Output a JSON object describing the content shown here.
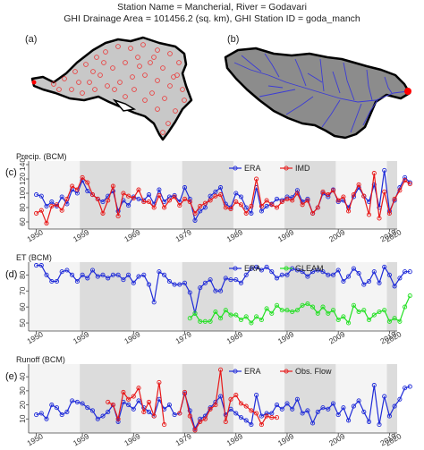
{
  "header": {
    "line1": "Station Name = Mancherial, River = Godavari",
    "line2": "GHI Drainage Area = 101456.2 (sq. km), GHI Station ID = goda_manch"
  },
  "maps": {
    "a_label": "(a)",
    "b_label": "(b)",
    "basin_fill": "#c8c8c8",
    "basin_fill_b": "#8c8c8c",
    "station_color": "#ff0000",
    "river_color": "#3b3bd6"
  },
  "chart_data": [
    {
      "type": "line",
      "tag": "(c)",
      "ylabel": "Precip. (BCM)",
      "x_ticks": [
        "1950",
        "1959",
        "1969",
        "1979",
        "1989",
        "1999",
        "2009",
        "2019",
        "2020"
      ],
      "yticks": [
        60,
        80,
        100,
        120,
        140
      ],
      "ylim": [
        50,
        145
      ],
      "xlim": [
        1948.5,
        2020.5
      ],
      "legend": "top-center",
      "series": [
        {
          "name": "ERA",
          "color": "#1f2bd8",
          "start": 1950,
          "values": [
            98,
            96,
            82,
            88,
            82,
            95,
            85,
            105,
            100,
            118,
            103,
            98,
            92,
            88,
            96,
            103,
            75,
            90,
            83,
            95,
            92,
            90,
            98,
            85,
            105,
            88,
            95,
            97,
            88,
            108,
            92,
            62,
            75,
            80,
            96,
            102,
            108,
            85,
            80,
            100,
            95,
            80,
            72,
            108,
            75,
            82,
            85,
            92,
            90,
            95,
            94,
            104,
            88,
            92,
            72,
            80,
            100,
            95,
            105,
            88,
            90,
            80,
            95,
            108,
            96,
            88,
            112,
            80,
            132,
            75,
            90,
            108,
            122,
            115
          ]
        },
        {
          "name": "IMD",
          "color": "#e81818",
          "start": 1950,
          "values": [
            72,
            76,
            58,
            82,
            84,
            76,
            92,
            110,
            105,
            122,
            115,
            98,
            92,
            72,
            90,
            110,
            68,
            100,
            96,
            93,
            105,
            88,
            88,
            80,
            97,
            80,
            90,
            95,
            83,
            92,
            88,
            72,
            82,
            86,
            90,
            96,
            98,
            80,
            78,
            88,
            84,
            72,
            82,
            120,
            82,
            90,
            84,
            80,
            88,
            92,
            90,
            100,
            84,
            90,
            72,
            80,
            102,
            98,
            104,
            90,
            95,
            75,
            98,
            112,
            96,
            70,
            128,
            65,
            102,
            72,
            92,
            104,
            118,
            113
          ]
        }
      ]
    },
    {
      "type": "line",
      "tag": "(d)",
      "ylabel": "ET (BCM)",
      "x_ticks": [
        "1950",
        "1959",
        "1969",
        "1979",
        "1989",
        "1999",
        "2009",
        "2019",
        "2020"
      ],
      "yticks": [
        50,
        60,
        70,
        80
      ],
      "ylim": [
        45,
        88
      ],
      "xlim": [
        1948.5,
        2020.5
      ],
      "legend": "top-center",
      "series": [
        {
          "name": "ERA",
          "color": "#1f2bd8",
          "start": 1950,
          "values": [
            86,
            86,
            80,
            76,
            76,
            82,
            83,
            80,
            76,
            80,
            78,
            83,
            79,
            80,
            78,
            80,
            80,
            77,
            80,
            75,
            79,
            80,
            74,
            63,
            82,
            80,
            76,
            74,
            74,
            75,
            69,
            56,
            72,
            75,
            77,
            70,
            70,
            78,
            77,
            77,
            75,
            80,
            84,
            85,
            83,
            85,
            82,
            78,
            80,
            80,
            84,
            83,
            82,
            79,
            82,
            83,
            82,
            80,
            80,
            83,
            76,
            79,
            84,
            81,
            74,
            76,
            82,
            75,
            85,
            80,
            73,
            78,
            82,
            82
          ]
        },
        {
          "name": "GLEAM",
          "color": "#22e022",
          "start": 1980,
          "values": [
            53,
            56,
            51,
            51,
            51,
            57,
            53,
            58,
            55,
            55,
            52,
            54,
            50,
            54,
            52,
            59,
            56,
            61,
            58,
            58,
            57,
            58,
            61,
            62,
            60,
            56,
            60,
            56,
            58,
            52,
            54,
            50,
            61,
            57,
            58,
            52,
            55,
            57,
            58,
            51,
            53,
            51,
            60,
            67
          ]
        }
      ]
    },
    {
      "type": "line",
      "tag": "(e)",
      "ylabel": "Runoff (BCM)",
      "x_ticks": [
        "1950",
        "1959",
        "1969",
        "1979",
        "1989",
        "1999",
        "2009",
        "2019",
        "2020"
      ],
      "yticks": [
        10,
        20,
        30,
        40
      ],
      "ylim": [
        0,
        49
      ],
      "xlim": [
        1948.5,
        2020.5
      ],
      "legend": "top-center",
      "series": [
        {
          "name": "ERA",
          "color": "#1f2bd8",
          "start": 1950,
          "values": [
            13,
            14,
            10,
            20,
            18,
            13,
            15,
            23,
            22,
            21,
            18,
            16,
            10,
            12,
            15,
            20,
            8,
            22,
            20,
            17,
            23,
            18,
            15,
            12,
            24,
            17,
            20,
            13,
            14,
            28,
            16,
            3,
            10,
            12,
            18,
            22,
            26,
            13,
            17,
            14,
            11,
            9,
            6,
            27,
            12,
            14,
            14,
            20,
            17,
            21,
            17,
            24,
            14,
            16,
            7,
            15,
            18,
            17,
            21,
            13,
            18,
            9,
            19,
            23,
            15,
            8,
            34,
            6,
            26,
            12,
            19,
            24,
            32,
            33
          ]
        },
        {
          "name": "Obs. Flow",
          "color": "#e81818",
          "start": 1950,
          "values": [
            null,
            null,
            null,
            null,
            null,
            null,
            null,
            null,
            null,
            null,
            null,
            null,
            null,
            null,
            22,
            20,
            10,
            29,
            24,
            26,
            32,
            15,
            22,
            12,
            36,
            6,
            null,
            null,
            14,
            29,
            12,
            2,
            8,
            10,
            17,
            20,
            45,
            8,
            24,
            27,
            21,
            19,
            16,
            14,
            6,
            12,
            11,
            11,
            null,
            null,
            null,
            null,
            null,
            null,
            null,
            null,
            null,
            null,
            null,
            null,
            null,
            null,
            null,
            null,
            null,
            null,
            null,
            null,
            null,
            null,
            null,
            null,
            null,
            null
          ]
        }
      ]
    }
  ]
}
